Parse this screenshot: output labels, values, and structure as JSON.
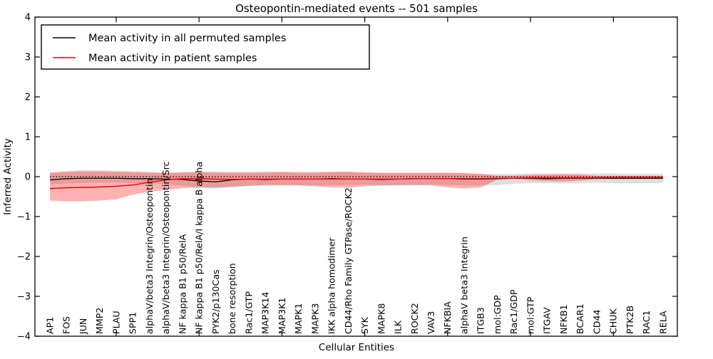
{
  "chart_data": {
    "type": "area",
    "title": "Osteopontin-mediated events -- 501 samples",
    "xlabel": "Cellular Entities",
    "ylabel": "Inferred Activity",
    "ylim": [
      -4,
      4
    ],
    "yticks": [
      4,
      3,
      2,
      1,
      0,
      -1,
      -2,
      -3,
      -4
    ],
    "ytick_labels": [
      "4",
      "3",
      "2",
      "1",
      "0",
      "−1",
      "−2",
      "−3",
      "−4"
    ],
    "axis_tick_category_indices": [
      4,
      9,
      14,
      19,
      24,
      29,
      34
    ],
    "grid": false,
    "zero_reference_line": 0,
    "categories": [
      "AP1",
      "FOS",
      "JUN",
      "MMP2",
      "PLAU",
      "SPP1",
      "alphaV/beta3 Integrin/Osteopontin",
      "alphaV/beta3 Integrin/Osteopontin/Src",
      "NF kappa B1 p50/RelA",
      "NF kappa B1 p50/RelA/I kappa B alpha",
      "PYK2/p130Cas",
      "bone resorption",
      "Rac1/GTP",
      "MAP3K14",
      "MAP3K1",
      "MAPK1",
      "MAPK3",
      "IKK alpha homodimer",
      "CD44/Rho Family GTPase/ROCK2",
      "SYK",
      "MAPK8",
      "ILK",
      "ROCK2",
      "VAV3",
      "NFKBIA",
      "alphaV beta3 Integrin",
      "ITGB3",
      "mol:GDP",
      "Rac1/GDP",
      "mol:GTP",
      "ITGAV",
      "NFKB1",
      "BCAR1",
      "CD44",
      "CHUK",
      "PTK2B",
      "RAC1",
      "RELA"
    ],
    "series": [
      {
        "name": "Mean activity in all permuted samples",
        "color": "#000000",
        "values": [
          -0.08,
          -0.05,
          -0.04,
          -0.04,
          -0.04,
          -0.05,
          -0.05,
          -0.06,
          -0.07,
          -0.11,
          -0.13,
          -0.08,
          -0.06,
          -0.07,
          -0.06,
          -0.06,
          -0.06,
          -0.05,
          -0.06,
          -0.06,
          -0.07,
          -0.06,
          -0.05,
          -0.05,
          -0.05,
          -0.06,
          -0.06,
          -0.05,
          -0.04,
          -0.04,
          -0.05,
          -0.04,
          -0.04,
          -0.04,
          -0.04,
          -0.04,
          -0.04,
          -0.04
        ]
      },
      {
        "name": "Mean activity in patient samples",
        "color": "#ff0000",
        "values": [
          -0.3,
          -0.28,
          -0.27,
          -0.26,
          -0.24,
          -0.21,
          -0.14,
          -0.08,
          -0.05,
          -0.05,
          -0.06,
          -0.07,
          -0.06,
          -0.06,
          -0.06,
          -0.06,
          -0.06,
          -0.06,
          -0.06,
          -0.06,
          -0.06,
          -0.06,
          -0.05,
          -0.05,
          -0.05,
          -0.05,
          -0.05,
          -0.04,
          -0.04,
          -0.03,
          -0.03,
          -0.03,
          -0.03,
          -0.03,
          -0.02,
          -0.02,
          -0.02,
          -0.02
        ]
      }
    ],
    "bands": [
      {
        "name": "permuted-samples-range",
        "color": "rgba(0,0,0,0.13)",
        "hi": [
          0.11,
          0.14,
          0.17,
          0.16,
          0.15,
          0.14,
          0.12,
          0.1,
          0.12,
          0.13,
          0.13,
          0.12,
          0.12,
          0.13,
          0.13,
          0.12,
          0.12,
          0.13,
          0.12,
          0.11,
          0.1,
          0.1,
          0.1,
          0.1,
          0.09,
          0.08,
          0.07,
          0.07,
          0.07,
          0.08,
          0.08,
          0.08,
          0.08,
          0.08,
          0.08,
          0.07,
          0.07,
          0.07
        ],
        "lo": [
          -0.19,
          -0.17,
          -0.16,
          -0.15,
          -0.15,
          -0.16,
          -0.17,
          -0.19,
          -0.23,
          -0.28,
          -0.3,
          -0.27,
          -0.23,
          -0.21,
          -0.2,
          -0.21,
          -0.22,
          -0.22,
          -0.21,
          -0.2,
          -0.22,
          -0.23,
          -0.21,
          -0.2,
          -0.21,
          -0.22,
          -0.22,
          -0.21,
          -0.18,
          -0.16,
          -0.16,
          -0.17,
          -0.16,
          -0.15,
          -0.16,
          -0.17,
          -0.16,
          -0.16
        ]
      },
      {
        "name": "patient-samples-range",
        "color": "rgba(255,0,0,0.30)",
        "hi": [
          0.09,
          0.12,
          0.13,
          0.13,
          0.12,
          0.11,
          0.1,
          0.09,
          0.1,
          0.11,
          0.1,
          0.1,
          0.1,
          0.1,
          0.11,
          0.1,
          0.1,
          0.11,
          0.12,
          0.1,
          0.09,
          0.09,
          0.09,
          0.09,
          0.1,
          0.09,
          0.07,
          0.02,
          0.02,
          0.04,
          0.05,
          0.06,
          0.05,
          0.02,
          0.02,
          0.02,
          0.02,
          0.02
        ],
        "lo": [
          -0.6,
          -0.62,
          -0.62,
          -0.6,
          -0.57,
          -0.45,
          -0.38,
          -0.33,
          -0.29,
          -0.27,
          -0.27,
          -0.25,
          -0.23,
          -0.22,
          -0.22,
          -0.22,
          -0.24,
          -0.27,
          -0.28,
          -0.24,
          -0.22,
          -0.21,
          -0.21,
          -0.22,
          -0.27,
          -0.3,
          -0.27,
          -0.07,
          -0.06,
          -0.09,
          -0.11,
          -0.12,
          -0.1,
          -0.06,
          -0.06,
          -0.06,
          -0.06,
          -0.06
        ]
      }
    ],
    "legend": {
      "position": "upper-left",
      "entries": [
        {
          "label": "Mean activity in all permuted samples",
          "color": "#000000"
        },
        {
          "label": "Mean activity in patient samples",
          "color": "#ff0000"
        }
      ]
    },
    "colors": {
      "permuted_line": "#000000",
      "patient_line": "#ff0000",
      "permuted_band": "rgba(0,0,0,0.13)",
      "patient_band": "rgba(255,0,0,0.30)",
      "background": "#ffffff",
      "spine": "#000000"
    }
  }
}
